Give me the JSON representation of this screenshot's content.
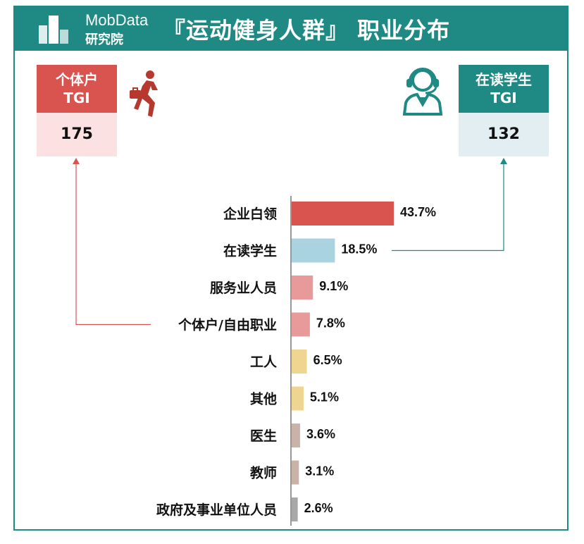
{
  "brand": {
    "name": "MobData",
    "sub": "研究院"
  },
  "title": "『运动健身人群』 职业分布",
  "cards": {
    "left": {
      "label_line1": "个体户",
      "label_line2": "TGI",
      "value": "175",
      "head_color": "#d9534f",
      "body_color": "#fbe1e1"
    },
    "right": {
      "label_line1": "在读学生",
      "label_line2": "TGI",
      "value": "132",
      "head_color": "#1f8a83",
      "body_color": "#e2eef2"
    }
  },
  "icons": {
    "left": "running-businessman-icon",
    "right": "headset-person-icon"
  },
  "chart_data": {
    "type": "bar",
    "orientation": "horizontal",
    "categories": [
      "企业白领",
      "在读学生",
      "服务业人员",
      "个体户/自由职业",
      "工人",
      "其他",
      "医生",
      "教师",
      "政府及事业单位人员"
    ],
    "values": [
      43.7,
      18.5,
      9.1,
      7.8,
      6.5,
      5.1,
      3.6,
      3.1,
      2.6
    ],
    "value_labels": [
      "43.7%",
      "18.5%",
      "9.1%",
      "7.8%",
      "6.5%",
      "5.1%",
      "3.6%",
      "3.1%",
      "2.6%"
    ],
    "colors": [
      "#d9534f",
      "#a9d3de",
      "#e89a9a",
      "#e89a9a",
      "#efd58f",
      "#efd58f",
      "#c9b3a8",
      "#c9b3a8",
      "#a8a8a8"
    ],
    "unit": "%"
  }
}
